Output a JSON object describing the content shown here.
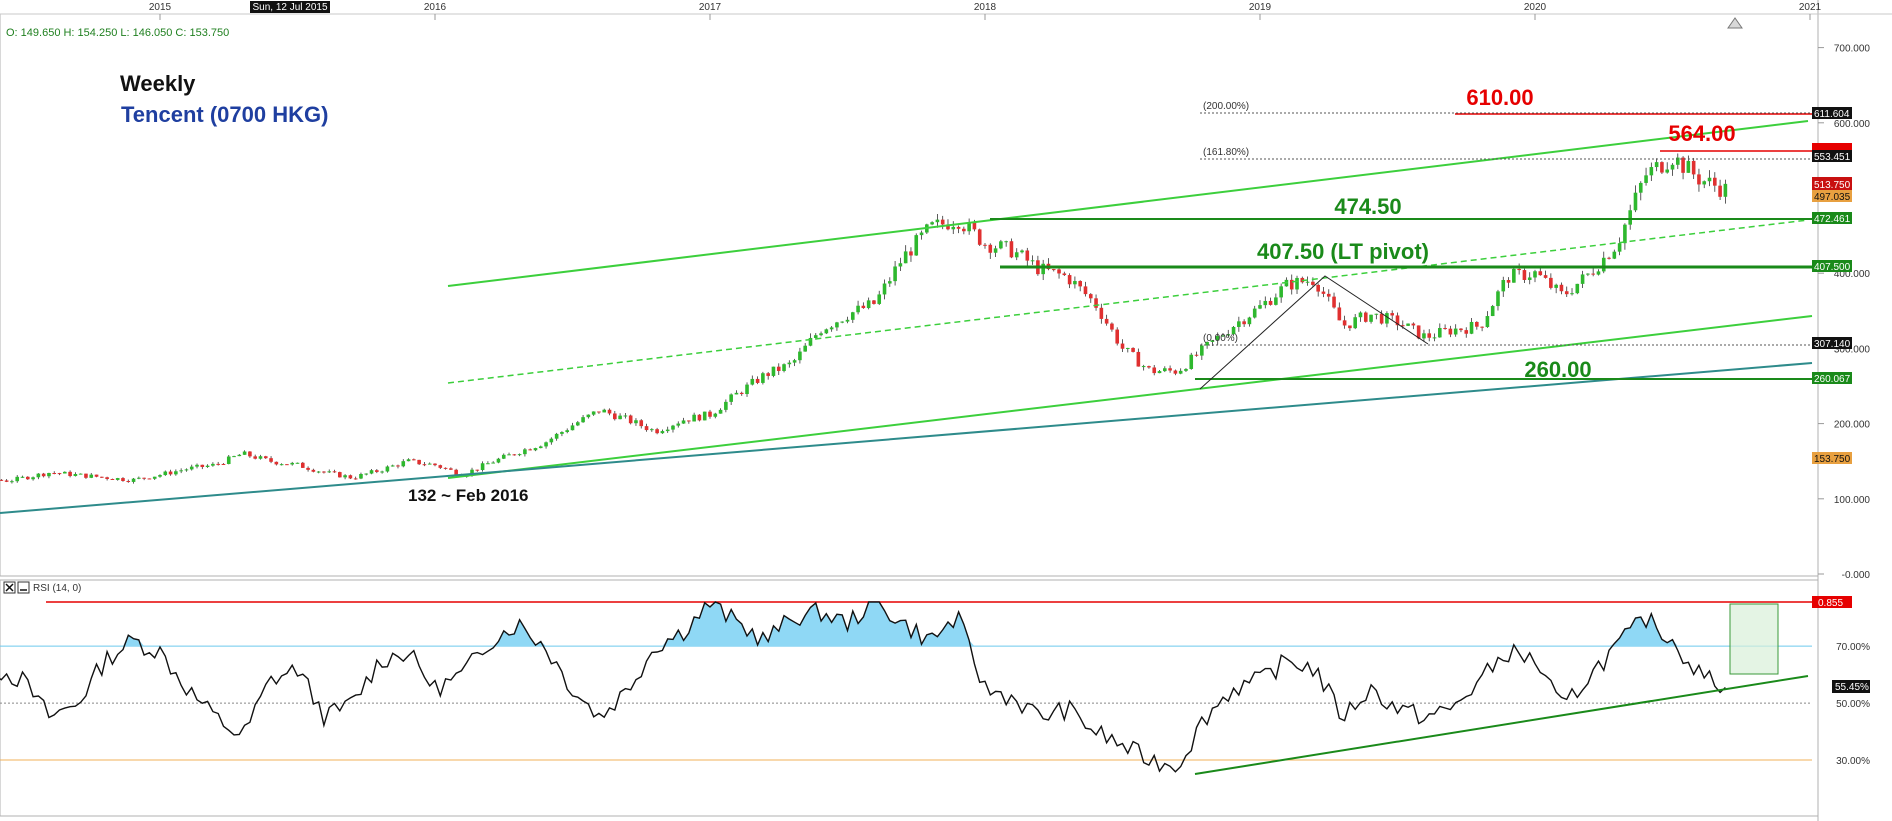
{
  "header": {
    "ohlc_text": "O: 149.650   H: 154.250   L: 146.050   C: 153.750",
    "date_badge": "Sun, 12 Jul 2015"
  },
  "labels": {
    "timeframe": "Weekly",
    "instrument": "Tencent (0700 HKG)",
    "low_note": "132 ~ Feb 2016",
    "level_610": "610.00",
    "level_564": "564.00",
    "level_474": "474.50",
    "level_407": "407.50 (LT pivot)",
    "level_260": "260.00",
    "fib_200": "(200.00%)",
    "fib_161": "(161.80%)",
    "fib_0": "(0.00%)"
  },
  "colors": {
    "channel": "#3ccf3c",
    "horizontal": "#1a8a1a",
    "trend_teal": "#2e8b8b",
    "red": "#e60000",
    "up_candle": "#2eb82e",
    "down_candle": "#e03030",
    "rsi_fill": "#8fd8f5",
    "rsi_70": "#6cc9ee",
    "rsi_30": "#f2b05a"
  },
  "rsi": {
    "panel_label": "RSI (14, 0)"
  },
  "chart_data": [
    {
      "type": "line",
      "title": "Weekly Tencent (0700 HKG)",
      "x_ticks": [
        "2015",
        "2016",
        "2017",
        "2018",
        "2019",
        "2020",
        "2021"
      ],
      "y_ticks": [
        "700.000",
        "600.000",
        "400.000",
        "300.000",
        "200.000",
        "100.000",
        "-0.000"
      ],
      "ylim": [
        0,
        740
      ],
      "series": [
        {
          "values": [
            [
              2014.0,
              130
            ],
            [
              2014.15,
              138
            ],
            [
              2014.3,
              128
            ],
            [
              2014.45,
              124
            ],
            [
              2014.6,
              135
            ],
            [
              2014.75,
              130
            ],
            [
              2014.9,
              125
            ],
            [
              2015.0,
              132
            ],
            [
              2015.1,
              140
            ],
            [
              2015.2,
              145
            ],
            [
              2015.3,
              160
            ],
            [
              2015.4,
              150
            ],
            [
              2015.5,
              145
            ],
            [
              2015.6,
              135
            ],
            [
              2015.7,
              128
            ],
            [
              2015.8,
              138
            ],
            [
              2015.9,
              150
            ],
            [
              2016.0,
              145
            ],
            [
              2016.1,
              132
            ],
            [
              2016.2,
              148
            ],
            [
              2016.3,
              162
            ],
            [
              2016.4,
              175
            ],
            [
              2016.5,
              198
            ],
            [
              2016.6,
              218
            ],
            [
              2016.7,
              205
            ],
            [
              2016.8,
              190
            ],
            [
              2016.9,
              205
            ],
            [
              2017.0,
              212
            ],
            [
              2017.1,
              240
            ],
            [
              2017.2,
              265
            ],
            [
              2017.3,
              280
            ],
            [
              2017.4,
              325
            ],
            [
              2017.5,
              345
            ],
            [
              2017.6,
              360
            ],
            [
              2017.7,
              420
            ],
            [
              2017.8,
              460
            ],
            [
              2017.9,
              472
            ],
            [
              2018.0,
              440
            ],
            [
              2018.1,
              430
            ],
            [
              2018.2,
              405
            ],
            [
              2018.3,
              395
            ],
            [
              2018.4,
              360
            ],
            [
              2018.5,
              300
            ],
            [
              2018.6,
              270
            ],
            [
              2018.7,
              270
            ],
            [
              2018.8,
              300
            ],
            [
              2018.9,
              330
            ],
            [
              2019.0,
              355
            ],
            [
              2019.1,
              385
            ],
            [
              2019.2,
              392
            ],
            [
              2019.3,
              330
            ],
            [
              2019.4,
              345
            ],
            [
              2019.5,
              335
            ],
            [
              2019.6,
              315
            ],
            [
              2019.7,
              325
            ],
            [
              2019.8,
              330
            ],
            [
              2019.9,
              395
            ],
            [
              2020.0,
              400
            ],
            [
              2020.1,
              370
            ],
            [
              2020.2,
              400
            ],
            [
              2020.3,
              440
            ],
            [
              2020.4,
              530
            ],
            [
              2020.5,
              555
            ],
            [
              2020.6,
              525
            ],
            [
              2020.7,
              510
            ]
          ]
        }
      ],
      "annotations": [
        {
          "text": "610.00",
          "y": 611.604
        },
        {
          "text": "564.00",
          "y": 564
        },
        {
          "text": "474.50",
          "y": 474.5
        },
        {
          "text": "407.50 (LT pivot)",
          "y": 407.5
        },
        {
          "text": "260.00",
          "y": 260
        },
        {
          "text": "132 ~ Feb 2016",
          "y": 132
        }
      ],
      "price_labels": [
        "611.604",
        "553.451",
        "513.750",
        "497.035",
        "472.461",
        "407.500",
        "307.140",
        "260.067",
        "153.750"
      ]
    },
    {
      "type": "line",
      "y_ticks": [
        "70.00%",
        "50.00%",
        "30.00%"
      ],
      "ylim": [
        20,
        95
      ],
      "reference_lines": [
        {
          "y": 85.5,
          "label": "0.855"
        },
        {
          "y": 70
        },
        {
          "y": 50
        },
        {
          "y": 30
        }
      ],
      "current_label": "55.45%",
      "series": [
        {
          "values": [
            [
              2014.0,
              60
            ],
            [
              2014.1,
              68
            ],
            [
              2014.2,
              55
            ],
            [
              2014.3,
              48
            ],
            [
              2014.4,
              62
            ],
            [
              2014.5,
              58
            ],
            [
              2014.6,
              45
            ],
            [
              2014.7,
              50
            ],
            [
              2014.8,
              65
            ],
            [
              2014.9,
              72
            ],
            [
              2015.0,
              68
            ],
            [
              2015.1,
              55
            ],
            [
              2015.2,
              45
            ],
            [
              2015.3,
              38
            ],
            [
              2015.4,
              58
            ],
            [
              2015.5,
              62
            ],
            [
              2015.6,
              45
            ],
            [
              2015.7,
              50
            ],
            [
              2015.8,
              65
            ],
            [
              2015.9,
              68
            ],
            [
              2016.0,
              55
            ],
            [
              2016.1,
              60
            ],
            [
              2016.2,
              72
            ],
            [
              2016.3,
              78
            ],
            [
              2016.4,
              70
            ],
            [
              2016.5,
              55
            ],
            [
              2016.6,
              45
            ],
            [
              2016.7,
              55
            ],
            [
              2016.8,
              70
            ],
            [
              2016.9,
              75
            ],
            [
              2017.0,
              85
            ],
            [
              2017.1,
              78
            ],
            [
              2017.2,
              72
            ],
            [
              2017.3,
              80
            ],
            [
              2017.4,
              82
            ],
            [
              2017.5,
              78
            ],
            [
              2017.6,
              86
            ],
            [
              2017.7,
              78
            ],
            [
              2017.8,
              72
            ],
            [
              2017.9,
              80
            ],
            [
              2018.0,
              55
            ],
            [
              2018.1,
              52
            ],
            [
              2018.2,
              45
            ],
            [
              2018.3,
              48
            ],
            [
              2018.4,
              40
            ],
            [
              2018.5,
              35
            ],
            [
              2018.6,
              30
            ],
            [
              2018.7,
              28
            ],
            [
              2018.8,
              45
            ],
            [
              2018.9,
              55
            ],
            [
              2019.0,
              58
            ],
            [
              2019.1,
              65
            ],
            [
              2019.2,
              62
            ],
            [
              2019.3,
              45
            ],
            [
              2019.4,
              55
            ],
            [
              2019.5,
              48
            ],
            [
              2019.6,
              45
            ],
            [
              2019.7,
              48
            ],
            [
              2019.8,
              58
            ],
            [
              2019.9,
              68
            ],
            [
              2020.0,
              65
            ],
            [
              2020.1,
              48
            ],
            [
              2020.2,
              60
            ],
            [
              2020.3,
              70
            ],
            [
              2020.4,
              80
            ],
            [
              2020.5,
              72
            ],
            [
              2020.6,
              60
            ],
            [
              2020.7,
              55.45
            ]
          ]
        }
      ]
    }
  ]
}
